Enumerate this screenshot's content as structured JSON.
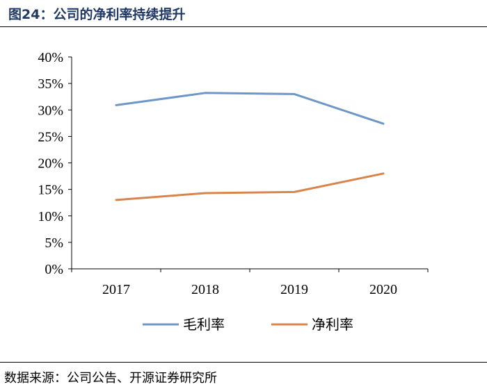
{
  "figure": {
    "title": "图24：公司的净利率持续提升",
    "source": "数据来源：公司公告、开源证券研究所"
  },
  "chart_data": {
    "type": "line",
    "title": "公司的净利率持续提升",
    "xlabel": "",
    "ylabel": "",
    "categories": [
      "2017",
      "2018",
      "2019",
      "2020"
    ],
    "ylim": [
      0,
      40
    ],
    "y_ticks": [
      "0%",
      "5%",
      "10%",
      "15%",
      "20%",
      "25%",
      "30%",
      "35%",
      "40%"
    ],
    "y_tick_values": [
      0,
      5,
      10,
      15,
      20,
      25,
      30,
      35,
      40
    ],
    "grid": false,
    "legend_position": "bottom",
    "series": [
      {
        "name": "毛利率",
        "color": "#6f96c8",
        "values": [
          30.9,
          33.2,
          33.0,
          27.4
        ]
      },
      {
        "name": "净利率",
        "color": "#d9844b",
        "values": [
          13.0,
          14.3,
          14.5,
          18.0
        ]
      }
    ]
  }
}
